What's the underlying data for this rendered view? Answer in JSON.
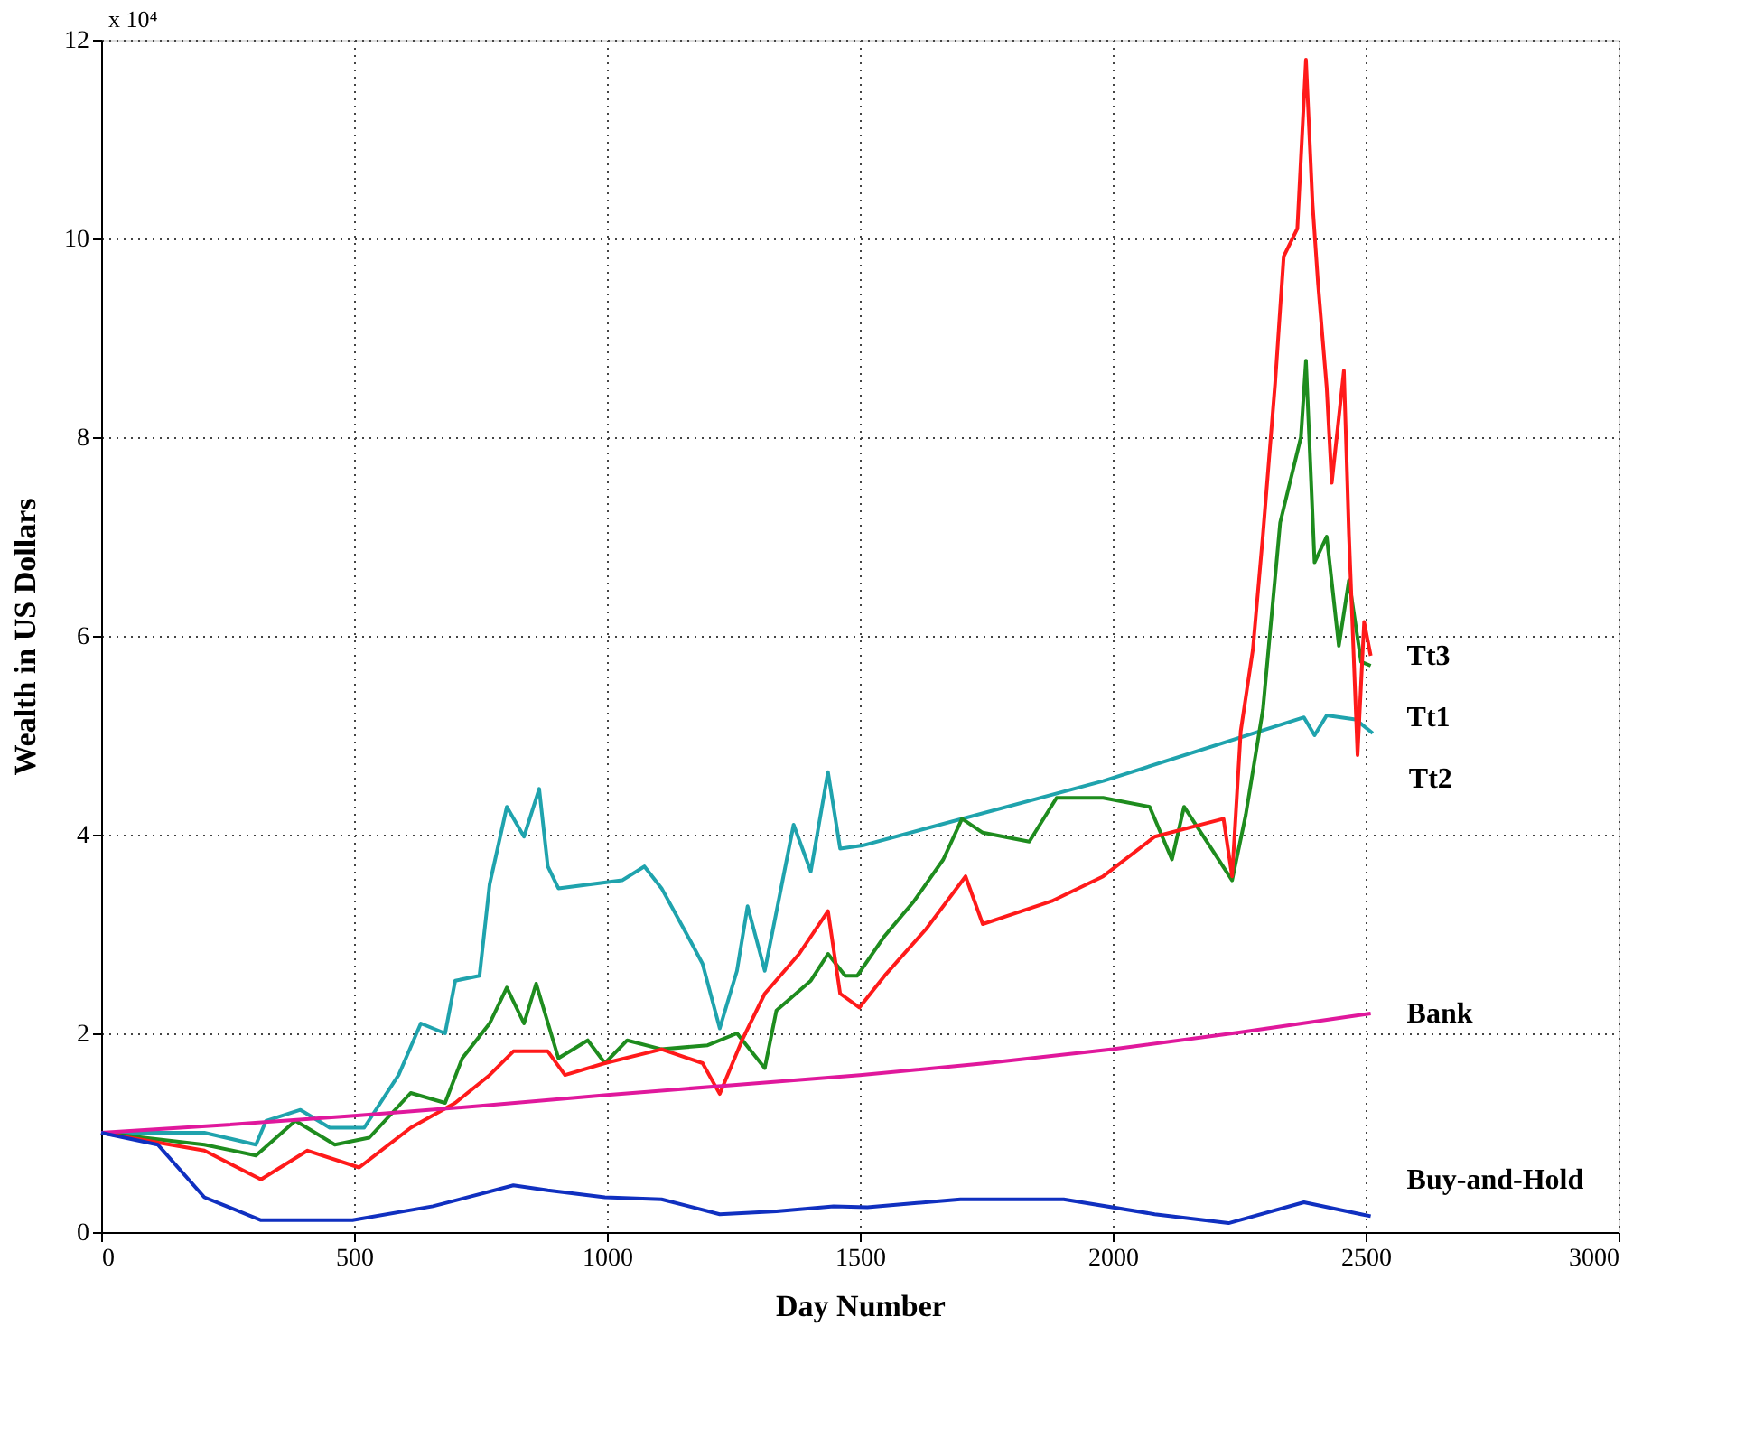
{
  "chart_data": {
    "type": "line",
    "xlabel": "Day Number",
    "ylabel": "Wealth in US Dollars",
    "xlim": [
      0,
      3000
    ],
    "xticks": [
      0,
      500,
      1000,
      1500,
      2000,
      2500,
      3000
    ],
    "ylim": [
      0,
      12
    ],
    "yticks": [
      0,
      2,
      4,
      6,
      8,
      10,
      12
    ],
    "annotations": [
      "x 10⁴"
    ],
    "grid": true,
    "legend": false,
    "marker": "none",
    "line_style": "solid",
    "series": [
      {
        "name": "Tt2",
        "color": "#1fa3ad",
        "x": [
          0,
          204,
          306,
          326,
          394,
          452,
          520,
          588,
          632,
          680,
          700,
          748,
          768,
          802,
          836,
          866,
          883,
          904,
          1030,
          1074,
          1108,
          1165,
          1189,
          1223,
          1257,
          1278,
          1312,
          1369,
          1403,
          1437,
          1461,
          1505,
          1981,
          2378,
          2399,
          2423,
          2480,
          2514
        ],
        "values": [
          1.0,
          1.0,
          0.88,
          1.12,
          1.23,
          1.05,
          1.05,
          1.58,
          2.1,
          2.0,
          2.53,
          2.58,
          3.5,
          4.28,
          3.98,
          4.46,
          3.68,
          3.46,
          3.54,
          3.68,
          3.46,
          2.93,
          2.7,
          2.05,
          2.63,
          3.28,
          2.63,
          4.1,
          3.63,
          4.63,
          3.86,
          3.89,
          4.54,
          5.18,
          5.0,
          5.2,
          5.16,
          5.02
        ]
      },
      {
        "name": "Tt1",
        "color": "#1e8c1e",
        "x": [
          0,
          204,
          306,
          384,
          462,
          530,
          612,
          680,
          714,
          768,
          802,
          836,
          860,
          904,
          962,
          996,
          1040,
          1108,
          1199,
          1257,
          1312,
          1335,
          1403,
          1437,
          1471,
          1495,
          1549,
          1607,
          1665,
          1702,
          1743,
          1835,
          1889,
          1981,
          2073,
          2117,
          2141,
          2195,
          2236,
          2263,
          2297,
          2331,
          2372,
          2382,
          2399,
          2423,
          2447,
          2467,
          2491,
          2510
        ],
        "values": [
          1.0,
          0.88,
          0.77,
          1.12,
          0.88,
          0.95,
          1.4,
          1.3,
          1.75,
          2.1,
          2.46,
          2.1,
          2.5,
          1.75,
          1.93,
          1.7,
          1.93,
          1.84,
          1.88,
          2.0,
          1.65,
          2.23,
          2.53,
          2.8,
          2.58,
          2.58,
          2.98,
          3.33,
          3.75,
          4.16,
          4.02,
          3.93,
          4.37,
          4.37,
          4.28,
          3.75,
          4.28,
          3.86,
          3.54,
          4.2,
          5.26,
          7.14,
          8.0,
          8.77,
          6.74,
          7.0,
          5.9,
          6.56,
          5.74,
          5.7
        ]
      },
      {
        "name": "Tt3",
        "color": "#ff1a1a",
        "x": [
          0,
          204,
          316,
          408,
          510,
          612,
          700,
          768,
          815,
          883,
          917,
          996,
          1108,
          1189,
          1223,
          1267,
          1312,
          1380,
          1437,
          1461,
          1499,
          1549,
          1631,
          1709,
          1743,
          1879,
          1981,
          2083,
          2219,
          2236,
          2253,
          2277,
          2297,
          2321,
          2338,
          2365,
          2382,
          2395,
          2406,
          2423,
          2433,
          2457,
          2467,
          2484,
          2497,
          2510
        ],
        "values": [
          1.0,
          0.82,
          0.53,
          0.82,
          0.65,
          1.05,
          1.3,
          1.58,
          1.82,
          1.82,
          1.58,
          1.7,
          1.84,
          1.7,
          1.39,
          1.93,
          2.4,
          2.8,
          3.23,
          2.4,
          2.26,
          2.58,
          3.05,
          3.58,
          3.1,
          3.33,
          3.58,
          3.98,
          4.16,
          3.58,
          5.04,
          5.86,
          7.02,
          8.54,
          9.82,
          10.1,
          11.8,
          10.35,
          9.54,
          8.5,
          7.54,
          8.67,
          7.02,
          4.8,
          6.14,
          5.8
        ]
      },
      {
        "name": "Bank",
        "color": "#e0189c",
        "x": [
          0,
          250,
          500,
          750,
          1000,
          1250,
          1500,
          1750,
          2000,
          2250,
          2510
        ],
        "values": [
          1.0,
          1.08,
          1.17,
          1.27,
          1.38,
          1.48,
          1.58,
          1.7,
          1.84,
          2.01,
          2.2
        ]
      },
      {
        "name": "Buy-and-Hold",
        "color": "#1030c0",
        "x": [
          0,
          112,
          204,
          316,
          497,
          656,
          815,
          883,
          996,
          1108,
          1223,
          1335,
          1448,
          1515,
          1699,
          1903,
          2083,
          2229,
          2378,
          2491,
          2510
        ],
        "values": [
          1.0,
          0.88,
          0.35,
          0.12,
          0.12,
          0.26,
          0.47,
          0.42,
          0.35,
          0.33,
          0.18,
          0.21,
          0.26,
          0.25,
          0.33,
          0.33,
          0.18,
          0.09,
          0.3,
          0.18,
          0.16
        ]
      }
    ]
  }
}
